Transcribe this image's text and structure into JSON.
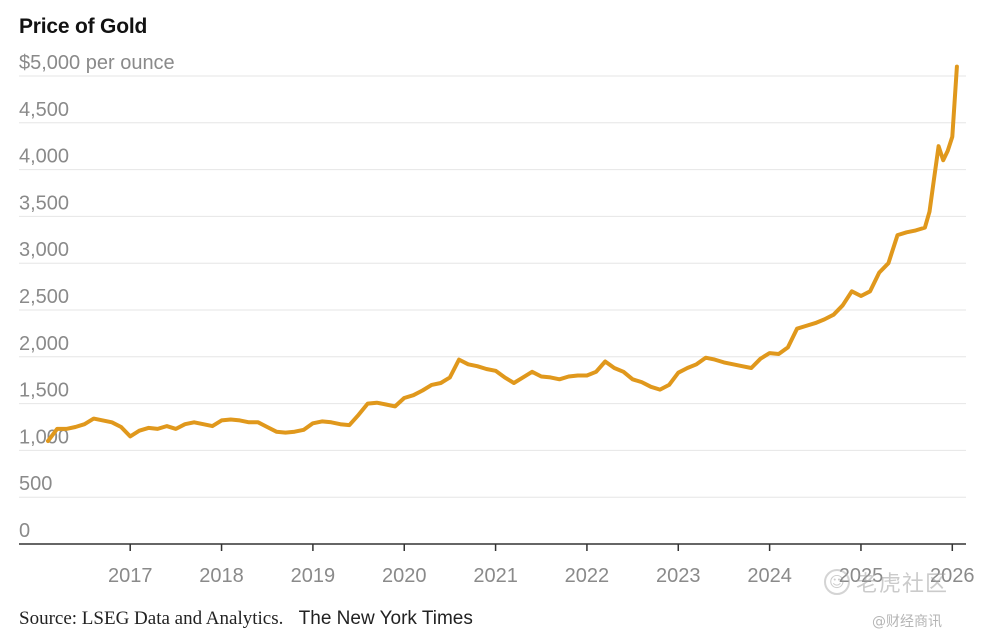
{
  "chart_data": {
    "type": "line",
    "title": "Price of Gold",
    "ylabel": "",
    "xlabel": "",
    "y_unit_label": "$5,000 per ounce",
    "ylim": [
      0,
      5000
    ],
    "yticks": [
      0,
      500,
      1000,
      1500,
      2000,
      2500,
      3000,
      3500,
      4000,
      4500,
      5000
    ],
    "ytick_labels": [
      "0",
      "500",
      "1,000",
      "1,500",
      "2,000",
      "2,500",
      "3,000",
      "3,500",
      "4,000",
      "4,500",
      "$5,000 per ounce"
    ],
    "xlim": [
      2016.1,
      2026.15
    ],
    "xticks": [
      2017,
      2018,
      2019,
      2020,
      2021,
      2022,
      2023,
      2024,
      2025,
      2026
    ],
    "xtick_labels": [
      "2017",
      "2018",
      "2019",
      "2020",
      "2021",
      "2022",
      "2023",
      "2024",
      "2025",
      "2026"
    ],
    "grid": "horizontal",
    "line_color": "#e0981c",
    "series": [
      {
        "x": [
          2016.1,
          2016.2,
          2016.3,
          2016.4,
          2016.5,
          2016.6,
          2016.7,
          2016.8,
          2016.9,
          2017.0,
          2017.1,
          2017.2,
          2017.3,
          2017.4,
          2017.5,
          2017.6,
          2017.7,
          2017.8,
          2017.9,
          2018.0,
          2018.1,
          2018.2,
          2018.3,
          2018.4,
          2018.5,
          2018.6,
          2018.7,
          2018.8,
          2018.9,
          2019.0,
          2019.1,
          2019.2,
          2019.3,
          2019.4,
          2019.5,
          2019.6,
          2019.7,
          2019.8,
          2019.9,
          2020.0,
          2020.1,
          2020.2,
          2020.3,
          2020.4,
          2020.5,
          2020.6,
          2020.7,
          2020.8,
          2020.9,
          2021.0,
          2021.1,
          2021.2,
          2021.3,
          2021.4,
          2021.5,
          2021.6,
          2021.7,
          2021.8,
          2021.9,
          2022.0,
          2022.1,
          2022.2,
          2022.3,
          2022.4,
          2022.5,
          2022.6,
          2022.7,
          2022.8,
          2022.9,
          2023.0,
          2023.1,
          2023.2,
          2023.3,
          2023.4,
          2023.5,
          2023.6,
          2023.7,
          2023.8,
          2023.9,
          2024.0,
          2024.1,
          2024.2,
          2024.3,
          2024.4,
          2024.5,
          2024.6,
          2024.7,
          2024.8,
          2024.9,
          2025.0,
          2025.1,
          2025.2,
          2025.3,
          2025.4,
          2025.5,
          2025.6,
          2025.7,
          2025.75,
          2025.8,
          2025.85,
          2025.9,
          2025.95,
          2026.0,
          2026.05
        ],
        "values": [
          1100,
          1230,
          1230,
          1250,
          1280,
          1340,
          1320,
          1300,
          1250,
          1150,
          1210,
          1240,
          1230,
          1260,
          1230,
          1280,
          1300,
          1280,
          1260,
          1320,
          1330,
          1320,
          1300,
          1300,
          1250,
          1200,
          1190,
          1200,
          1220,
          1290,
          1310,
          1300,
          1280,
          1270,
          1380,
          1500,
          1510,
          1490,
          1470,
          1560,
          1590,
          1640,
          1700,
          1720,
          1780,
          1970,
          1920,
          1900,
          1870,
          1850,
          1780,
          1720,
          1780,
          1840,
          1790,
          1780,
          1760,
          1790,
          1800,
          1800,
          1840,
          1950,
          1880,
          1840,
          1760,
          1730,
          1680,
          1650,
          1700,
          1830,
          1880,
          1920,
          1990,
          1970,
          1940,
          1920,
          1900,
          1880,
          1980,
          2040,
          2030,
          2100,
          2300,
          2330,
          2360,
          2400,
          2450,
          2550,
          2700,
          2650,
          2700,
          2900,
          3000,
          3300,
          3330,
          3350,
          3380,
          3550,
          3900,
          4250,
          4100,
          4200,
          4350,
          5100
        ]
      }
    ],
    "source": "Source: LSEG Data and Analytics.",
    "credit": "The New York Times"
  },
  "watermark": {
    "main": "老虎社区",
    "sub": "@财经商讯",
    "icon": "tiger-logo"
  }
}
